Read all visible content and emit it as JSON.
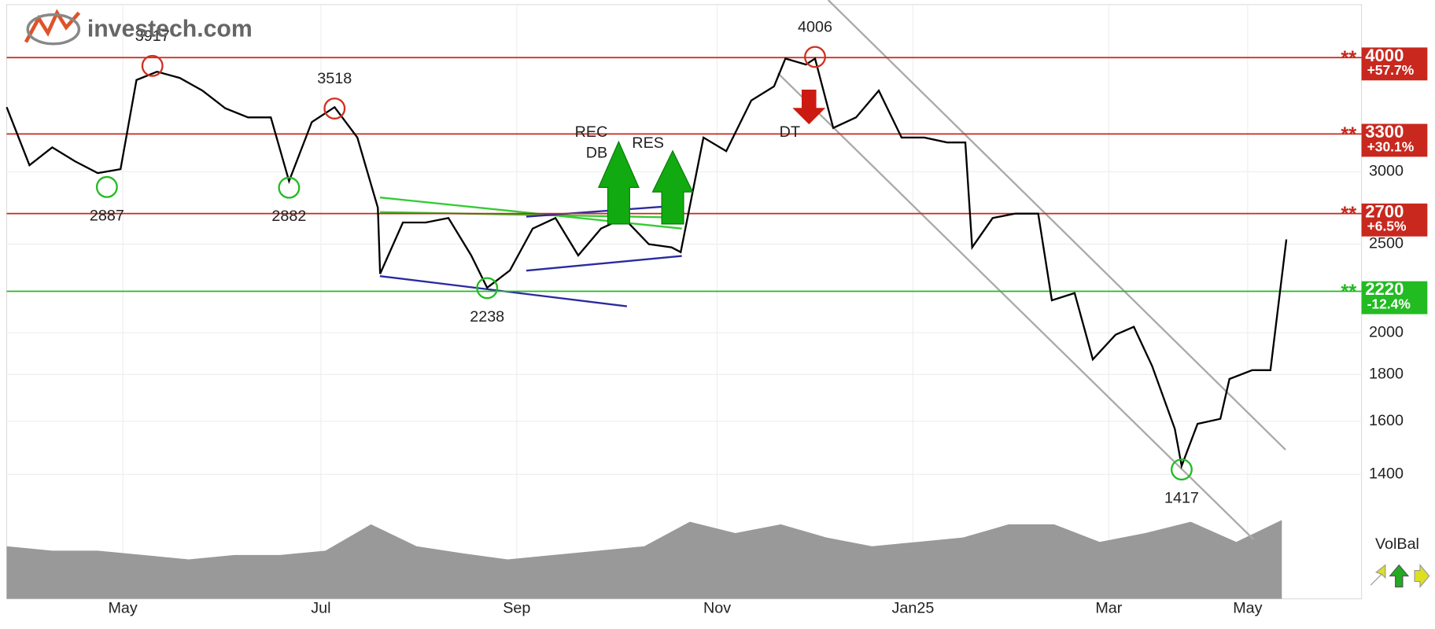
{
  "logo": "investech.com",
  "chart_data": {
    "type": "line",
    "log_y": true,
    "grid": true,
    "color": "#000000",
    "xlim": [
      0,
      59.5
    ],
    "xticks": [
      {
        "value": 5.1,
        "label": "May"
      },
      {
        "value": 13.8,
        "label": "Jul"
      },
      {
        "value": 22.4,
        "label": "Sep"
      },
      {
        "value": 31.2,
        "label": "Nov"
      },
      {
        "value": 39.8,
        "label": "Jan25"
      },
      {
        "value": 48.4,
        "label": "Mar"
      },
      {
        "value": 54.5,
        "label": "May"
      }
    ],
    "ylim": [
      1300,
      4550
    ],
    "yticks": [
      1400,
      1600,
      1800,
      2000,
      2500,
      3000
    ],
    "x": [
      0,
      1.0,
      2.0,
      3.0,
      4.0,
      5.0,
      5.7,
      6.6,
      7.6,
      8.6,
      9.6,
      10.6,
      11.6,
      12.4,
      13.4,
      14.4,
      15.4,
      16.3,
      16.4,
      17.4,
      18.4,
      19.4,
      20.4,
      21.1,
      22.1,
      23.1,
      24.1,
      25.1,
      26.1,
      27.1,
      28.2,
      29.2,
      29.6,
      30.6,
      31.6,
      32.7,
      33.7,
      34.2,
      35.1,
      35.5,
      36.3,
      37.3,
      38.3,
      39.3,
      40.3,
      41.3,
      42.1,
      42.4,
      43.3,
      44.3,
      45.3,
      45.9,
      46.9,
      47.7,
      48.7,
      49.5,
      50.3,
      51.3,
      51.6,
      52.3,
      53.3,
      53.7,
      54.7,
      55.5,
      56.2
    ],
    "values": [
      3530,
      3050,
      3190,
      3080,
      2990,
      3020,
      3780,
      3860,
      3800,
      3680,
      3520,
      3440,
      3440,
      2930,
      3400,
      3530,
      3270,
      2740,
      2320,
      2640,
      2640,
      2670,
      2430,
      2240,
      2340,
      2600,
      2670,
      2430,
      2600,
      2670,
      2500,
      2480,
      2450,
      3270,
      3160,
      3590,
      3720,
      3990,
      3930,
      3990,
      3350,
      3440,
      3680,
      3270,
      3270,
      3230,
      3230,
      2480,
      2670,
      2700,
      2700,
      2170,
      2210,
      1870,
      1990,
      2030,
      1840,
      1570,
      1430,
      1590,
      1610,
      1780,
      1820,
      1820,
      2530
    ],
    "volume": {
      "color": "#999999",
      "ylim": [
        0,
        120
      ],
      "x": [
        0,
        2,
        4,
        6,
        8,
        10,
        12,
        14,
        16,
        18,
        20,
        22,
        24,
        26,
        28,
        30,
        32,
        34,
        36,
        38,
        40,
        42,
        44,
        46,
        48,
        50,
        52,
        54,
        56
      ],
      "values": [
        60,
        55,
        55,
        50,
        45,
        50,
        50,
        55,
        85,
        60,
        52,
        45,
        50,
        55,
        60,
        88,
        75,
        85,
        70,
        60,
        65,
        70,
        85,
        85,
        65,
        75,
        88,
        65,
        90
      ]
    },
    "extremes": {
      "x": [
        6.4,
        14.4,
        35.5,
        4.4,
        12.4,
        21.1,
        51.6
      ],
      "values": [
        3917,
        3518,
        4006,
        2887,
        2882,
        2238,
        1417
      ],
      "colors": [
        "#d03020",
        "#d03020",
        "#d03020",
        "#22bb22",
        "#22bb22",
        "#22bb22",
        "#22bb22"
      ]
    },
    "level_marker": "**",
    "levels": [
      {
        "value": 4000,
        "change": 57.7,
        "change_label": "+57.7%",
        "color": "#c8281e"
      },
      {
        "value": 3300,
        "change": 30.1,
        "change_label": "+30.1%",
        "color": "#c8281e"
      },
      {
        "value": 2700,
        "change": 6.5,
        "change_label": "+6.5%",
        "color": "#c8281e"
      },
      {
        "value": 2220,
        "change": -12.4,
        "change_label": "-12.4%",
        "color": "#22bb22"
      }
    ],
    "signals": [
      "REC",
      "DB",
      "RES",
      "DT"
    ],
    "indicator": "VolBal"
  }
}
